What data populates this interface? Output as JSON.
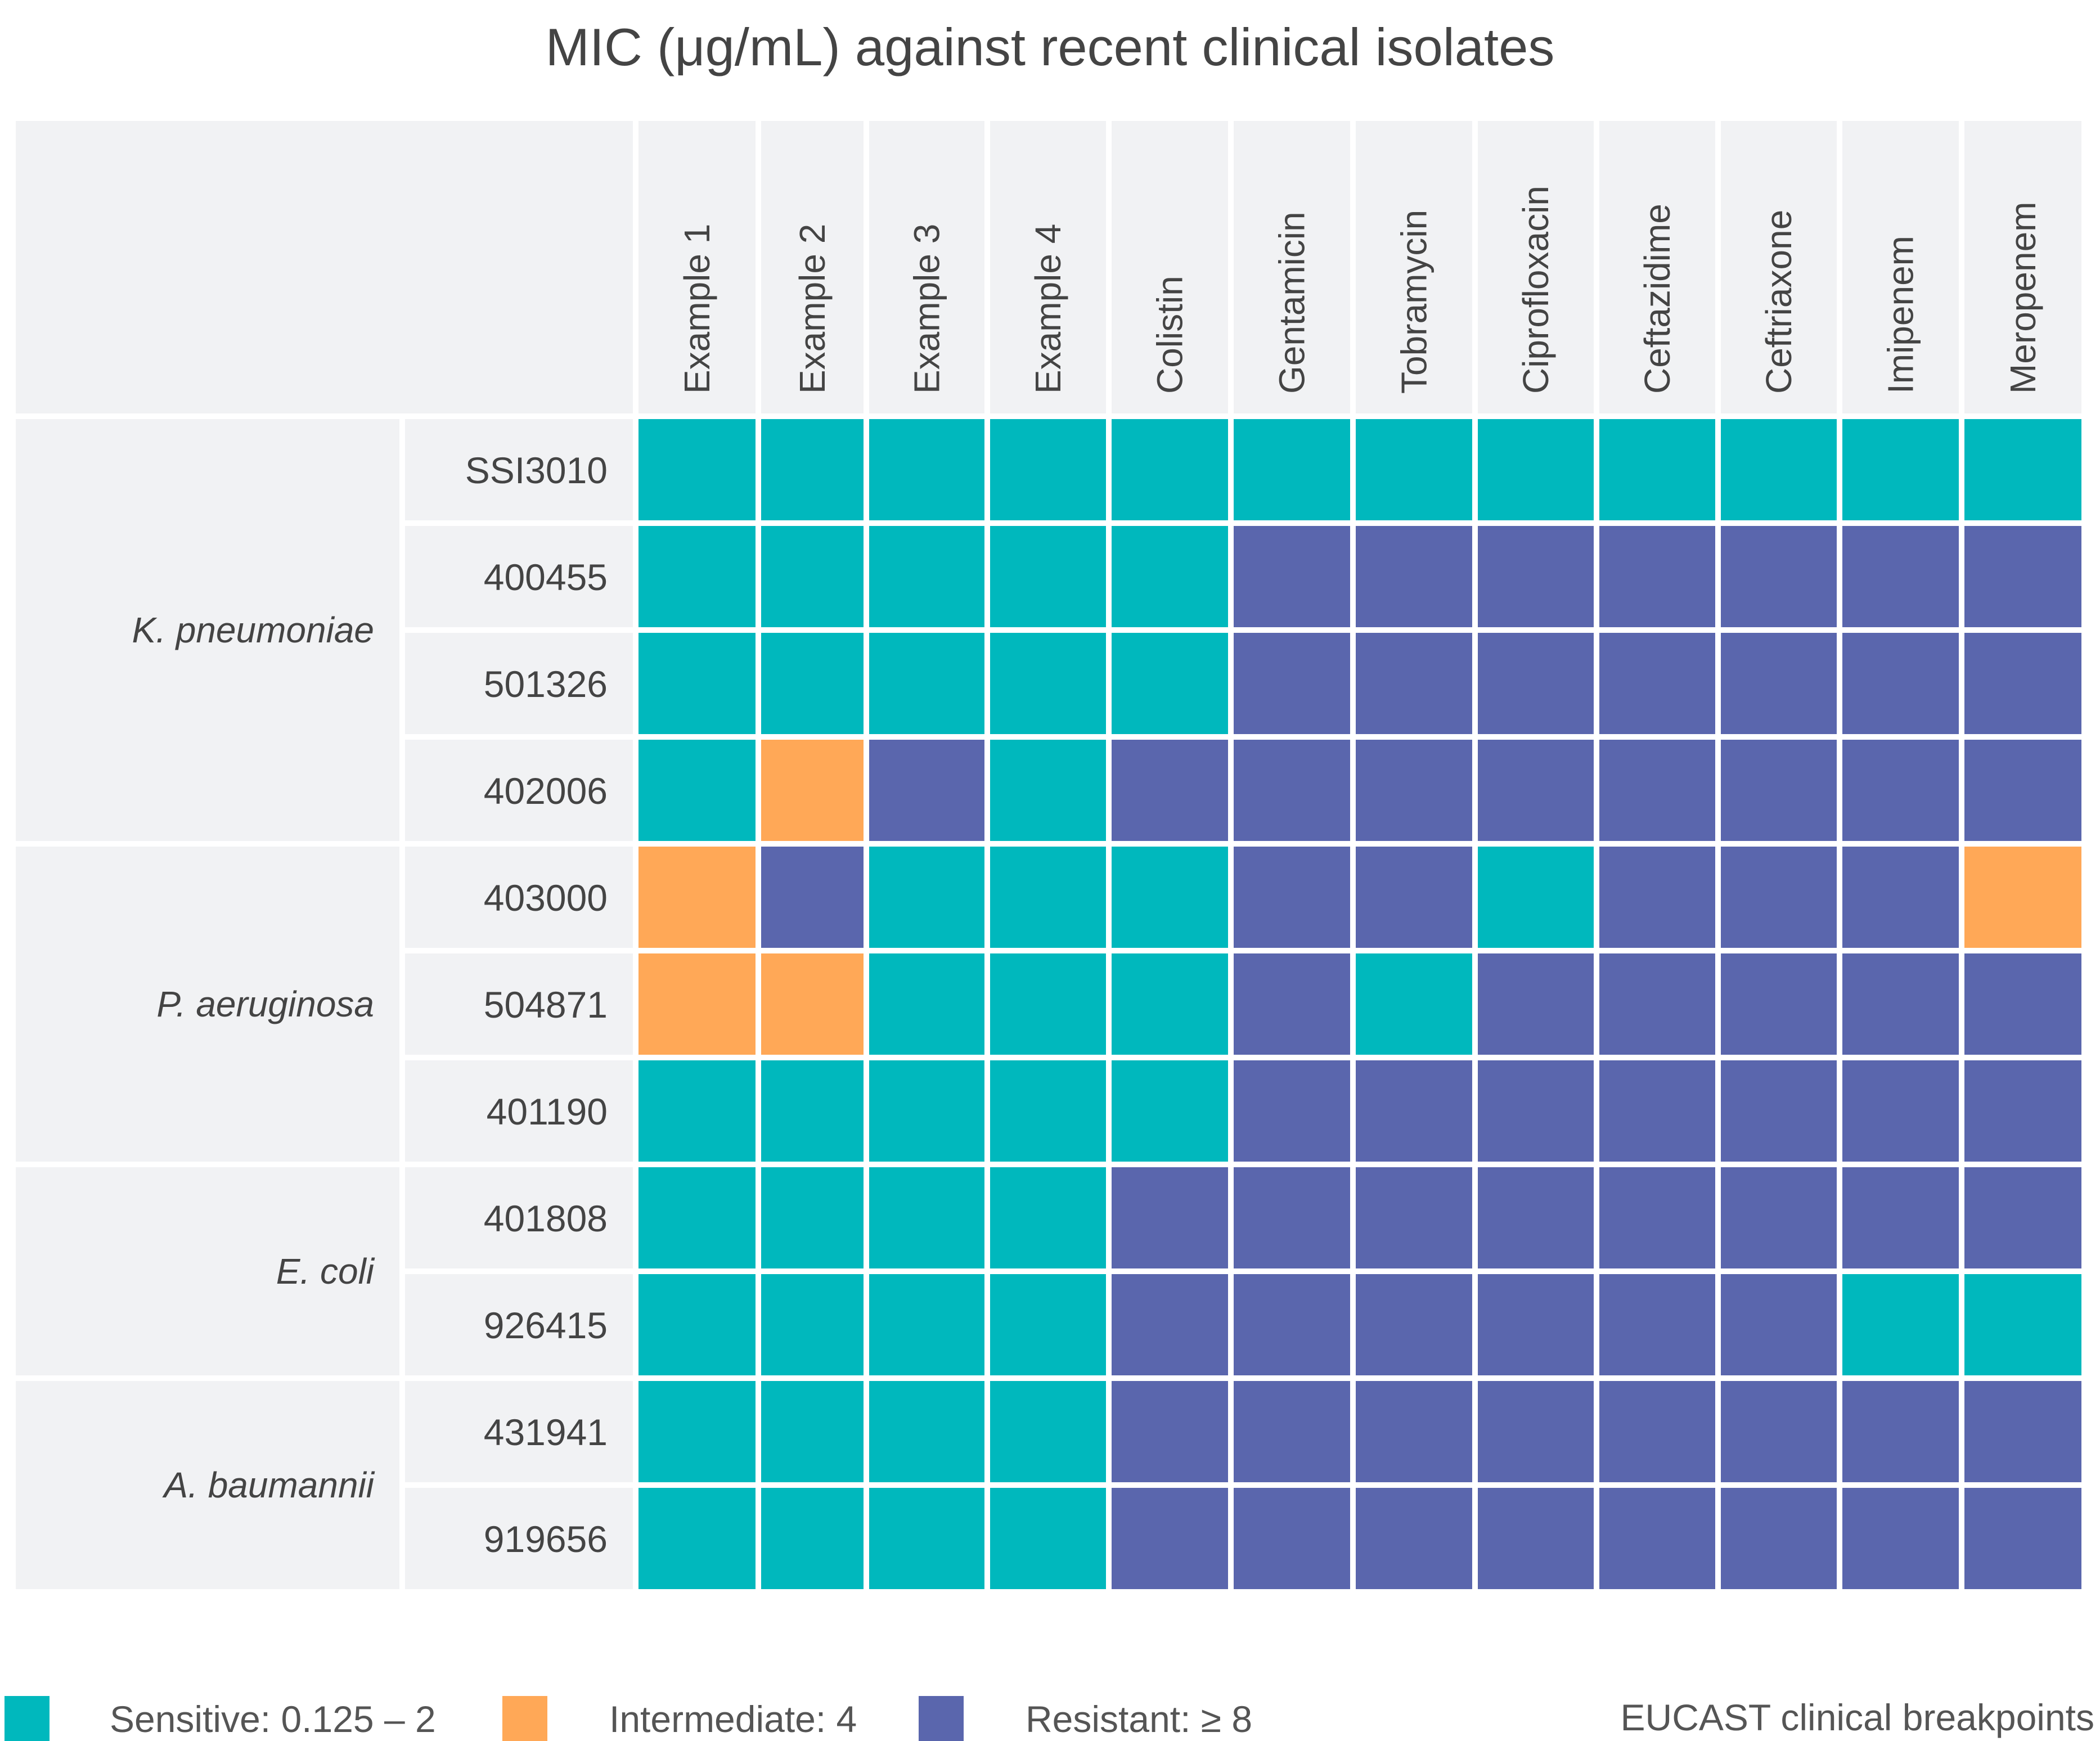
{
  "title": "MIC (μg/mL) against recent clinical isolates",
  "colors": {
    "sensitive": "#00b8bd",
    "intermediate": "#ffa857",
    "resistant": "#5a66ad",
    "header_bg": "#f1f2f4",
    "text": "#444444"
  },
  "legend": {
    "sensitive": "Sensitive: 0.125 – 2",
    "intermediate": "Intermediate: 4",
    "resistant": "Resistant:  ≥ 8",
    "source": "EUCAST clinical breakpoints"
  },
  "chart_data": {
    "type": "heatmap",
    "title": "MIC (μg/mL) against recent clinical isolates",
    "columns": [
      "Example 1",
      "Example 2",
      "Example 3",
      "Example 4",
      "Colistin",
      "Gentamicin",
      "Tobramycin",
      "Ciprofloxacin",
      "Ceftazidime",
      "Ceftriaxone",
      "Imipenem",
      "Meropenem"
    ],
    "categories": [
      "Sensitive",
      "Intermediate",
      "Resistant"
    ],
    "groups": [
      {
        "name": "K. pneumoniae",
        "rows": [
          {
            "id": "SSI3010",
            "values": [
              "S",
              "S",
              "S",
              "S",
              "S",
              "S",
              "S",
              "S",
              "S",
              "S",
              "S",
              "S"
            ]
          },
          {
            "id": "400455",
            "values": [
              "S",
              "S",
              "S",
              "S",
              "S",
              "R",
              "R",
              "R",
              "R",
              "R",
              "R",
              "R"
            ]
          },
          {
            "id": "501326",
            "values": [
              "S",
              "S",
              "S",
              "S",
              "S",
              "R",
              "R",
              "R",
              "R",
              "R",
              "R",
              "R"
            ]
          },
          {
            "id": "402006",
            "values": [
              "S",
              "I",
              "R",
              "S",
              "R",
              "R",
              "R",
              "R",
              "R",
              "R",
              "R",
              "R"
            ]
          }
        ]
      },
      {
        "name": "P. aeruginosa",
        "rows": [
          {
            "id": "403000",
            "values": [
              "I",
              "R",
              "S",
              "S",
              "S",
              "R",
              "R",
              "S",
              "R",
              "R",
              "R",
              "I"
            ]
          },
          {
            "id": "504871",
            "values": [
              "I",
              "I",
              "S",
              "S",
              "S",
              "R",
              "S",
              "R",
              "R",
              "R",
              "R",
              "R"
            ]
          },
          {
            "id": "401190",
            "values": [
              "S",
              "S",
              "S",
              "S",
              "S",
              "R",
              "R",
              "R",
              "R",
              "R",
              "R",
              "R"
            ]
          }
        ]
      },
      {
        "name": "E. coli",
        "rows": [
          {
            "id": "401808",
            "values": [
              "S",
              "S",
              "S",
              "S",
              "R",
              "R",
              "R",
              "R",
              "R",
              "R",
              "R",
              "R"
            ]
          },
          {
            "id": "926415",
            "values": [
              "S",
              "S",
              "S",
              "S",
              "R",
              "R",
              "R",
              "R",
              "R",
              "R",
              "S",
              "S"
            ]
          }
        ]
      },
      {
        "name": "A. baumannii",
        "rows": [
          {
            "id": "431941",
            "values": [
              "S",
              "S",
              "S",
              "S",
              "R",
              "R",
              "R",
              "R",
              "R",
              "R",
              "R",
              "R"
            ]
          },
          {
            "id": "919656",
            "values": [
              "S",
              "S",
              "S",
              "S",
              "R",
              "R",
              "R",
              "R",
              "R",
              "R",
              "R",
              "R"
            ]
          }
        ]
      }
    ]
  }
}
